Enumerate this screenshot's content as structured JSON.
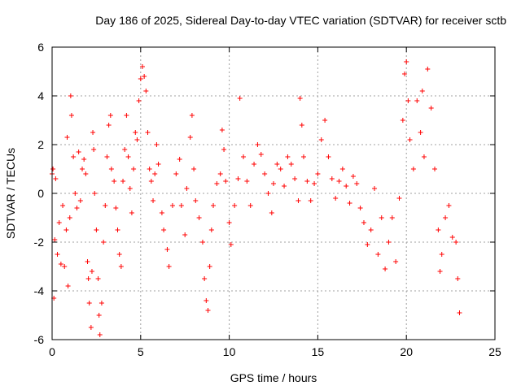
{
  "chart_data": {
    "type": "scatter",
    "title": "Day 186 of 2025, Sidereal Day-to-day VTEC variation (SDTVAR) for receiver sctb",
    "xlabel": "GPS time / hours",
    "ylabel": "SDTVAR / TECUs",
    "xlim": [
      0,
      25
    ],
    "ylim": [
      -6,
      6
    ],
    "xticks": [
      "0",
      "5",
      "10",
      "15",
      "20",
      "25"
    ],
    "yticks": [
      "-6",
      "-4",
      "-2",
      "0",
      "2",
      "4",
      "6"
    ],
    "grid": true,
    "marker": "+",
    "color": "#ff0000",
    "series": [
      {
        "name": "SDTVAR",
        "points": [
          [
            0.0,
            0.8
          ],
          [
            0.05,
            1.0
          ],
          [
            0.1,
            -4.3
          ],
          [
            0.15,
            -1.9
          ],
          [
            0.2,
            0.6
          ],
          [
            0.3,
            -2.5
          ],
          [
            0.4,
            -1.2
          ],
          [
            0.5,
            -2.9
          ],
          [
            0.6,
            -0.5
          ],
          [
            0.7,
            -3.0
          ],
          [
            0.8,
            -1.5
          ],
          [
            0.85,
            2.3
          ],
          [
            0.9,
            -3.8
          ],
          [
            1.0,
            -1.0
          ],
          [
            1.05,
            4.0
          ],
          [
            1.1,
            3.2
          ],
          [
            1.2,
            1.5
          ],
          [
            1.3,
            0.0
          ],
          [
            1.4,
            -0.6
          ],
          [
            1.5,
            1.7
          ],
          [
            1.6,
            -0.3
          ],
          [
            1.7,
            1.0
          ],
          [
            1.8,
            1.4
          ],
          [
            1.9,
            0.8
          ],
          [
            2.0,
            -2.8
          ],
          [
            2.05,
            -3.5
          ],
          [
            2.1,
            -4.5
          ],
          [
            2.2,
            -5.5
          ],
          [
            2.25,
            -3.2
          ],
          [
            2.3,
            2.5
          ],
          [
            2.35,
            1.8
          ],
          [
            2.4,
            0.0
          ],
          [
            2.5,
            -1.5
          ],
          [
            2.6,
            -3.5
          ],
          [
            2.65,
            -5.0
          ],
          [
            2.7,
            -5.8
          ],
          [
            2.8,
            -4.5
          ],
          [
            2.9,
            -2.0
          ],
          [
            3.0,
            -0.5
          ],
          [
            3.1,
            1.5
          ],
          [
            3.2,
            2.8
          ],
          [
            3.3,
            3.2
          ],
          [
            3.35,
            1.0
          ],
          [
            3.5,
            0.5
          ],
          [
            3.6,
            -0.6
          ],
          [
            3.7,
            -1.5
          ],
          [
            3.8,
            -2.5
          ],
          [
            3.9,
            -3.0
          ],
          [
            4.0,
            0.5
          ],
          [
            4.1,
            1.8
          ],
          [
            4.2,
            3.2
          ],
          [
            4.3,
            1.5
          ],
          [
            4.4,
            0.2
          ],
          [
            4.5,
            -0.8
          ],
          [
            4.6,
            1.0
          ],
          [
            4.7,
            2.5
          ],
          [
            4.8,
            2.2
          ],
          [
            4.9,
            3.8
          ],
          [
            5.0,
            4.7
          ],
          [
            5.1,
            5.2
          ],
          [
            5.2,
            4.8
          ],
          [
            5.3,
            4.2
          ],
          [
            5.4,
            2.5
          ],
          [
            5.5,
            1.0
          ],
          [
            5.6,
            0.5
          ],
          [
            5.7,
            -0.3
          ],
          [
            5.8,
            0.8
          ],
          [
            5.9,
            2.0
          ],
          [
            6.0,
            1.2
          ],
          [
            6.2,
            -0.8
          ],
          [
            6.3,
            -1.5
          ],
          [
            6.5,
            -2.3
          ],
          [
            6.6,
            -3.0
          ],
          [
            6.8,
            -0.5
          ],
          [
            7.0,
            0.8
          ],
          [
            7.2,
            1.4
          ],
          [
            7.3,
            -0.5
          ],
          [
            7.5,
            -1.7
          ],
          [
            7.6,
            0.2
          ],
          [
            7.8,
            2.3
          ],
          [
            7.9,
            3.2
          ],
          [
            8.0,
            1.0
          ],
          [
            8.1,
            -0.3
          ],
          [
            8.3,
            -1.0
          ],
          [
            8.5,
            -2.0
          ],
          [
            8.6,
            -3.5
          ],
          [
            8.7,
            -4.4
          ],
          [
            8.8,
            -4.8
          ],
          [
            8.9,
            -3.0
          ],
          [
            9.0,
            -1.5
          ],
          [
            9.1,
            -0.5
          ],
          [
            9.3,
            0.4
          ],
          [
            9.5,
            0.8
          ],
          [
            9.6,
            2.6
          ],
          [
            9.7,
            1.8
          ],
          [
            9.8,
            0.5
          ],
          [
            10.0,
            -1.2
          ],
          [
            10.1,
            -2.1
          ],
          [
            10.3,
            -0.5
          ],
          [
            10.5,
            0.6
          ],
          [
            10.6,
            3.9
          ],
          [
            10.8,
            1.5
          ],
          [
            11.0,
            0.5
          ],
          [
            11.2,
            -0.5
          ],
          [
            11.4,
            1.2
          ],
          [
            11.6,
            2.0
          ],
          [
            11.8,
            1.6
          ],
          [
            12.0,
            0.8
          ],
          [
            12.2,
            0.0
          ],
          [
            12.4,
            -0.8
          ],
          [
            12.5,
            0.4
          ],
          [
            12.7,
            1.2
          ],
          [
            12.9,
            1.0
          ],
          [
            13.1,
            0.3
          ],
          [
            13.3,
            1.5
          ],
          [
            13.5,
            1.2
          ],
          [
            13.7,
            0.6
          ],
          [
            13.9,
            -0.3
          ],
          [
            14.0,
            3.9
          ],
          [
            14.1,
            2.8
          ],
          [
            14.2,
            1.5
          ],
          [
            14.4,
            0.5
          ],
          [
            14.6,
            -0.3
          ],
          [
            14.8,
            0.4
          ],
          [
            15.0,
            0.8
          ],
          [
            15.2,
            2.2
          ],
          [
            15.4,
            3.0
          ],
          [
            15.6,
            1.5
          ],
          [
            15.8,
            0.6
          ],
          [
            16.0,
            -0.2
          ],
          [
            16.2,
            0.5
          ],
          [
            16.4,
            1.0
          ],
          [
            16.6,
            0.3
          ],
          [
            16.8,
            -0.4
          ],
          [
            17.0,
            0.7
          ],
          [
            17.2,
            0.4
          ],
          [
            17.4,
            -0.6
          ],
          [
            17.6,
            -1.2
          ],
          [
            17.8,
            -2.1
          ],
          [
            18.0,
            -1.5
          ],
          [
            18.2,
            0.2
          ],
          [
            18.4,
            -2.5
          ],
          [
            18.6,
            -1.0
          ],
          [
            18.8,
            -3.1
          ],
          [
            19.0,
            -2.0
          ],
          [
            19.2,
            -1.0
          ],
          [
            19.4,
            -2.8
          ],
          [
            19.6,
            -0.2
          ],
          [
            19.8,
            3.0
          ],
          [
            19.9,
            4.9
          ],
          [
            20.0,
            5.4
          ],
          [
            20.1,
            3.8
          ],
          [
            20.2,
            2.2
          ],
          [
            20.4,
            1.0
          ],
          [
            20.6,
            3.8
          ],
          [
            20.8,
            2.5
          ],
          [
            20.9,
            4.2
          ],
          [
            21.0,
            1.5
          ],
          [
            21.2,
            5.1
          ],
          [
            21.4,
            3.5
          ],
          [
            21.6,
            1.0
          ],
          [
            21.8,
            -1.5
          ],
          [
            21.9,
            -3.2
          ],
          [
            22.0,
            -2.5
          ],
          [
            22.2,
            -1.0
          ],
          [
            22.4,
            -0.5
          ],
          [
            22.6,
            -1.8
          ],
          [
            22.8,
            -2.0
          ],
          [
            22.9,
            -3.5
          ],
          [
            23.0,
            -4.9
          ]
        ]
      }
    ]
  }
}
